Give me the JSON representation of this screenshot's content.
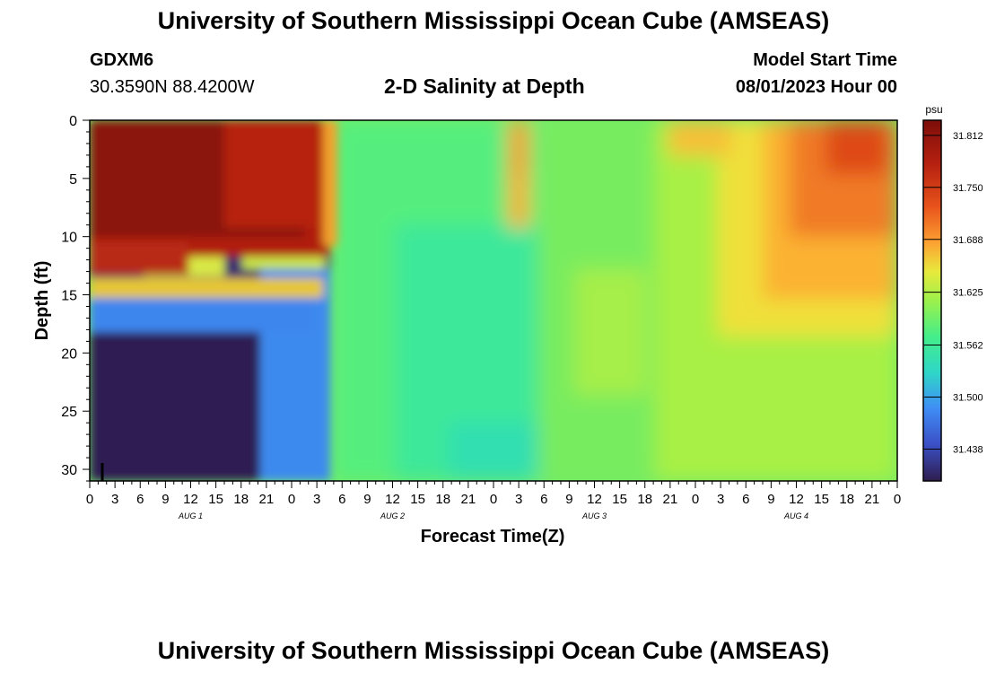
{
  "header": {
    "title": "University of Southern Mississippi Ocean Cube (AMSEAS)",
    "station_id": "GDXM6",
    "station_coords": "30.3590N  88.4200W",
    "subtitle": "2-D Salinity at Depth",
    "start_label": "Model Start Time",
    "start_value": "08/01/2023 Hour 00"
  },
  "footer": {
    "title": "University of Southern Mississippi Ocean Cube (AMSEAS)"
  },
  "chart_data": {
    "type": "heatmap",
    "title": "2-D Salinity at Depth",
    "xlabel": "Forecast Time(Z)",
    "ylabel": "Depth (ft)",
    "xlim": [
      0,
      96
    ],
    "ylim": [
      31,
      0
    ],
    "y_ticks": [
      0,
      5,
      10,
      15,
      20,
      25,
      30
    ],
    "x_tick_labels": [
      "0",
      "3",
      "6",
      "9",
      "12",
      "15",
      "18",
      "21",
      "0",
      "3",
      "6",
      "9",
      "12",
      "15",
      "18",
      "21",
      "0",
      "3",
      "6",
      "9",
      "12",
      "15",
      "18",
      "21",
      "0",
      "3",
      "6",
      "9",
      "12",
      "15",
      "18",
      "21",
      "0"
    ],
    "day_labels": [
      "AUG 1",
      "AUG 2",
      "AUG 3",
      "AUG 4"
    ],
    "colorbar": {
      "unit": "psu",
      "ticks": [
        "31.812",
        "31.750",
        "31.688",
        "31.625",
        "31.562",
        "31.500",
        "31.438"
      ],
      "range": [
        31.4,
        31.83
      ],
      "colors": [
        "#2e1d4d",
        "#3b4fc4",
        "#3f8cf5",
        "#2fd6c8",
        "#44ee8a",
        "#9cf04b",
        "#e8ea3c",
        "#fca232",
        "#e8531c",
        "#b52010",
        "#7d0e0a"
      ]
    },
    "note": "Salinity (psu) by forecast hour and depth: ~31.81 near surface for hours 0-28, ~31.43 below 17 ft, ~31.52-31.57 mid-period, ~31.62-31.70 near surface hours 68-96."
  },
  "colors": {
    "frame": "#000000",
    "background": "#ffffff"
  }
}
